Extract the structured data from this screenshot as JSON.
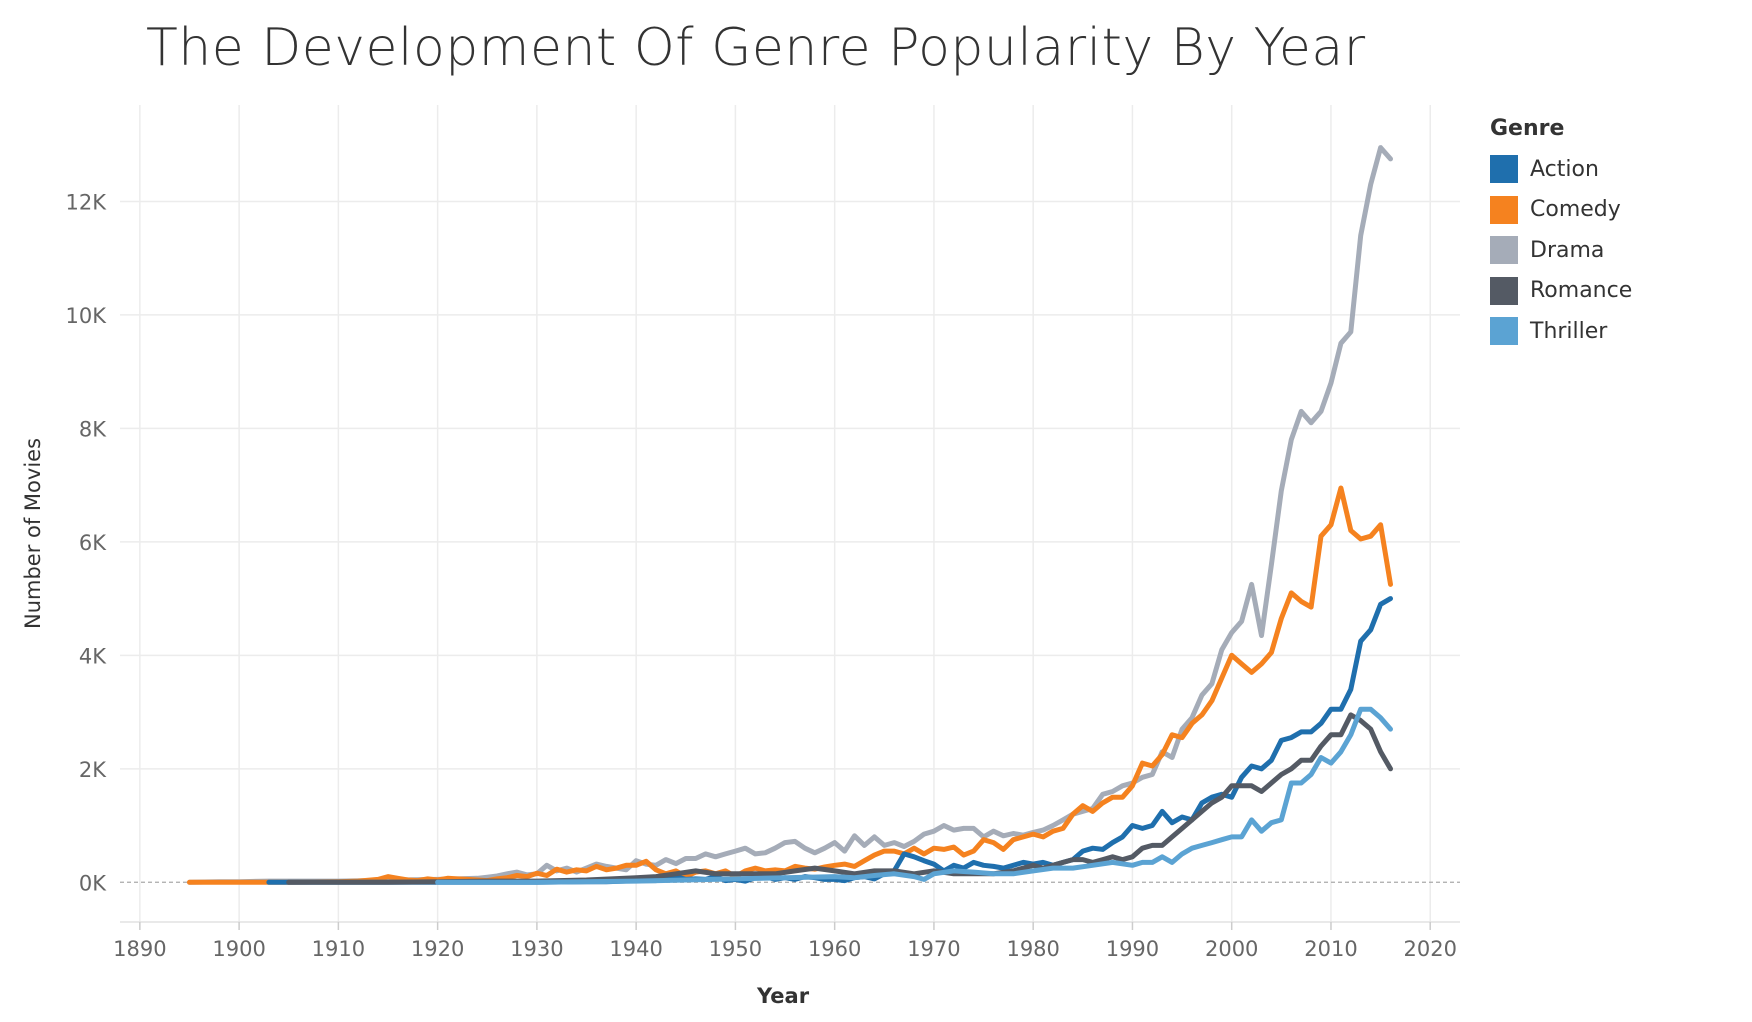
{
  "chart_data": {
    "type": "line",
    "title": "The Development Of Genre Popularity By Year",
    "xlabel": "Year",
    "ylabel": "Number of Movies",
    "xlim": [
      1888,
      2023
    ],
    "ylim": [
      -700,
      13700
    ],
    "x_ticks": [
      1890,
      1900,
      1910,
      1920,
      1930,
      1940,
      1950,
      1960,
      1970,
      1980,
      1990,
      2000,
      2010,
      2020
    ],
    "x_tick_labels": [
      "1890",
      "1900",
      "1910",
      "1920",
      "1930",
      "1940",
      "1950",
      "1960",
      "1970",
      "1980",
      "1990",
      "2000",
      "2010",
      "2020"
    ],
    "y_ticks": [
      0,
      2000,
      4000,
      6000,
      8000,
      10000,
      12000
    ],
    "y_tick_labels": [
      "0K",
      "2K",
      "4K",
      "6K",
      "8K",
      "10K",
      "12K"
    ],
    "grid": true,
    "zero_line": "dashed",
    "legend_title": "Genre",
    "legend_position": "right",
    "series": [
      {
        "name": "Drama",
        "color": "#a5acb8",
        "x": [
          1895,
          1898,
          1900,
          1903,
          1906,
          1910,
          1913,
          1916,
          1920,
          1922,
          1924,
          1925,
          1926,
          1927,
          1928,
          1929,
          1930,
          1931,
          1932,
          1933,
          1934,
          1935,
          1936,
          1937,
          1938,
          1939,
          1940,
          1941,
          1942,
          1943,
          1944,
          1945,
          1946,
          1947,
          1948,
          1949,
          1950,
          1951,
          1952,
          1953,
          1954,
          1955,
          1956,
          1957,
          1958,
          1959,
          1960,
          1961,
          1962,
          1963,
          1964,
          1965,
          1966,
          1967,
          1968,
          1969,
          1970,
          1971,
          1972,
          1973,
          1974,
          1975,
          1976,
          1977,
          1978,
          1979,
          1980,
          1981,
          1982,
          1983,
          1984,
          1985,
          1986,
          1987,
          1988,
          1989,
          1990,
          1991,
          1992,
          1993,
          1994,
          1995,
          1996,
          1997,
          1998,
          1999,
          2000,
          2001,
          2002,
          2003,
          2004,
          2005,
          2006,
          2007,
          2008,
          2009,
          2010,
          2011,
          2012,
          2013,
          2014,
          2015,
          2016
        ],
        "values": [
          0,
          10,
          10,
          20,
          20,
          20,
          30,
          40,
          50,
          60,
          70,
          90,
          110,
          150,
          180,
          130,
          150,
          300,
          200,
          250,
          180,
          250,
          320,
          280,
          250,
          220,
          380,
          320,
          300,
          400,
          330,
          420,
          420,
          500,
          450,
          500,
          550,
          600,
          500,
          520,
          600,
          700,
          720,
          600,
          520,
          600,
          700,
          550,
          820,
          650,
          800,
          650,
          700,
          630,
          720,
          850,
          900,
          1000,
          920,
          950,
          950,
          800,
          900,
          820,
          860,
          830,
          880,
          920,
          1000,
          1100,
          1200,
          1250,
          1300,
          1550,
          1600,
          1700,
          1750,
          1850,
          1900,
          2300,
          2200,
          2700,
          2900,
          3300,
          3500,
          4100,
          4400,
          4600,
          5250,
          4350,
          5600,
          6900,
          7800,
          8300,
          8100,
          8300,
          8800,
          9500,
          9700,
          11400,
          12300,
          12950,
          12750
        ]
      },
      {
        "name": "Comedy",
        "color": "#f5821f",
        "x": [
          1895,
          1900,
          1905,
          1910,
          1912,
          1914,
          1915,
          1916,
          1917,
          1918,
          1919,
          1920,
          1921,
          1922,
          1923,
          1924,
          1925,
          1926,
          1927,
          1928,
          1929,
          1930,
          1931,
          1932,
          1933,
          1934,
          1935,
          1936,
          1937,
          1938,
          1939,
          1940,
          1941,
          1942,
          1943,
          1944,
          1945,
          1946,
          1947,
          1948,
          1949,
          1950,
          1951,
          1952,
          1953,
          1954,
          1955,
          1956,
          1957,
          1958,
          1959,
          1960,
          1961,
          1962,
          1963,
          1964,
          1965,
          1966,
          1967,
          1968,
          1969,
          1970,
          1971,
          1972,
          1973,
          1974,
          1975,
          1976,
          1977,
          1978,
          1979,
          1980,
          1981,
          1982,
          1983,
          1984,
          1985,
          1986,
          1987,
          1988,
          1989,
          1990,
          1991,
          1992,
          1993,
          1994,
          1995,
          1996,
          1997,
          1998,
          1999,
          2000,
          2001,
          2002,
          2003,
          2004,
          2005,
          2006,
          2007,
          2008,
          2009,
          2010,
          2011,
          2012,
          2013,
          2014,
          2015,
          2016
        ],
        "values": [
          0,
          0,
          0,
          10,
          20,
          50,
          100,
          70,
          40,
          30,
          60,
          40,
          70,
          60,
          50,
          40,
          30,
          60,
          80,
          120,
          100,
          160,
          120,
          230,
          180,
          220,
          200,
          280,
          220,
          250,
          300,
          300,
          370,
          220,
          150,
          200,
          100,
          180,
          200,
          150,
          200,
          100,
          200,
          250,
          200,
          220,
          200,
          280,
          250,
          230,
          270,
          300,
          320,
          280,
          380,
          480,
          550,
          550,
          500,
          600,
          500,
          600,
          580,
          620,
          480,
          550,
          750,
          700,
          580,
          750,
          800,
          850,
          800,
          900,
          950,
          1200,
          1350,
          1250,
          1400,
          1500,
          1500,
          1700,
          2100,
          2050,
          2250,
          2600,
          2550,
          2800,
          2950,
          3200,
          3600,
          4000,
          3850,
          3700,
          3850,
          4050,
          4650,
          5100,
          4950,
          4850,
          6100,
          6300,
          6950,
          6200,
          6050,
          6100,
          6300,
          5250
        ]
      },
      {
        "name": "Action",
        "color": "#1f6fad",
        "x": [
          1903,
          1905,
          1910,
          1915,
          1920,
          1925,
          1930,
          1935,
          1937,
          1940,
          1942,
          1943,
          1944,
          1945,
          1946,
          1947,
          1948,
          1949,
          1950,
          1951,
          1952,
          1953,
          1954,
          1955,
          1956,
          1957,
          1958,
          1959,
          1960,
          1961,
          1962,
          1963,
          1964,
          1965,
          1966,
          1967,
          1968,
          1969,
          1970,
          1971,
          1972,
          1973,
          1974,
          1975,
          1976,
          1977,
          1978,
          1979,
          1980,
          1981,
          1982,
          1983,
          1984,
          1985,
          1986,
          1987,
          1988,
          1989,
          1990,
          1991,
          1992,
          1993,
          1994,
          1995,
          1996,
          1997,
          1998,
          1999,
          2000,
          2001,
          2002,
          2003,
          2004,
          2005,
          2006,
          2007,
          2008,
          2009,
          2010,
          2011,
          2012,
          2013,
          2014,
          2015,
          2016
        ],
        "values": [
          0,
          0,
          0,
          0,
          0,
          0,
          0,
          10,
          10,
          30,
          30,
          80,
          100,
          50,
          60,
          50,
          100,
          30,
          50,
          20,
          80,
          100,
          50,
          80,
          50,
          100,
          80,
          50,
          50,
          30,
          80,
          100,
          60,
          150,
          200,
          500,
          450,
          380,
          320,
          200,
          300,
          250,
          350,
          300,
          280,
          250,
          300,
          350,
          320,
          350,
          300,
          350,
          400,
          550,
          600,
          580,
          700,
          800,
          1000,
          950,
          1000,
          1250,
          1050,
          1150,
          1100,
          1400,
          1500,
          1550,
          1500,
          1850,
          2050,
          2000,
          2150,
          2500,
          2550,
          2650,
          2650,
          2800,
          3050,
          3050,
          3400,
          4250,
          4450,
          4900,
          5000
        ]
      },
      {
        "name": "Romance",
        "color": "#545a64",
        "x": [
          1905,
          1910,
          1915,
          1920,
          1925,
          1930,
          1935,
          1940,
          1942,
          1944,
          1946,
          1948,
          1950,
          1952,
          1954,
          1956,
          1958,
          1960,
          1962,
          1964,
          1966,
          1968,
          1970,
          1972,
          1974,
          1976,
          1978,
          1980,
          1981,
          1982,
          1983,
          1984,
          1985,
          1986,
          1987,
          1988,
          1989,
          1990,
          1991,
          1992,
          1993,
          1994,
          1995,
          1996,
          1997,
          1998,
          1999,
          2000,
          2001,
          2002,
          2003,
          2004,
          2005,
          2006,
          2007,
          2008,
          2009,
          2010,
          2011,
          2012,
          2013,
          2014,
          2015,
          2016
        ],
        "values": [
          0,
          0,
          0,
          10,
          20,
          20,
          40,
          80,
          100,
          150,
          200,
          150,
          150,
          150,
          150,
          200,
          250,
          200,
          150,
          200,
          200,
          150,
          200,
          150,
          150,
          150,
          200,
          300,
          250,
          300,
          350,
          400,
          400,
          350,
          400,
          450,
          400,
          450,
          600,
          650,
          650,
          800,
          950,
          1100,
          1250,
          1400,
          1500,
          1700,
          1700,
          1700,
          1600,
          1750,
          1900,
          2000,
          2150,
          2150,
          2400,
          2600,
          2600,
          2950,
          2850,
          2700,
          2300,
          2000
        ]
      },
      {
        "name": "Thriller",
        "color": "#5ba3d3",
        "x": [
          1920,
          1930,
          1940,
          1945,
          1950,
          1955,
          1960,
          1962,
          1964,
          1966,
          1968,
          1969,
          1970,
          1972,
          1974,
          1976,
          1978,
          1980,
          1982,
          1984,
          1986,
          1988,
          1990,
          1991,
          1992,
          1993,
          1994,
          1995,
          1996,
          1997,
          1998,
          1999,
          2000,
          2001,
          2002,
          2003,
          2004,
          2005,
          2006,
          2007,
          2008,
          2009,
          2010,
          2011,
          2012,
          2013,
          2014,
          2015,
          2016
        ],
        "values": [
          0,
          0,
          20,
          40,
          60,
          80,
          100,
          80,
          120,
          150,
          100,
          50,
          150,
          200,
          180,
          150,
          150,
          200,
          250,
          250,
          300,
          350,
          300,
          350,
          350,
          450,
          350,
          500,
          600,
          650,
          700,
          750,
          800,
          800,
          1100,
          900,
          1050,
          1100,
          1750,
          1750,
          1900,
          2200,
          2100,
          2300,
          2600,
          3050,
          3050,
          2900,
          2700
        ]
      }
    ]
  }
}
